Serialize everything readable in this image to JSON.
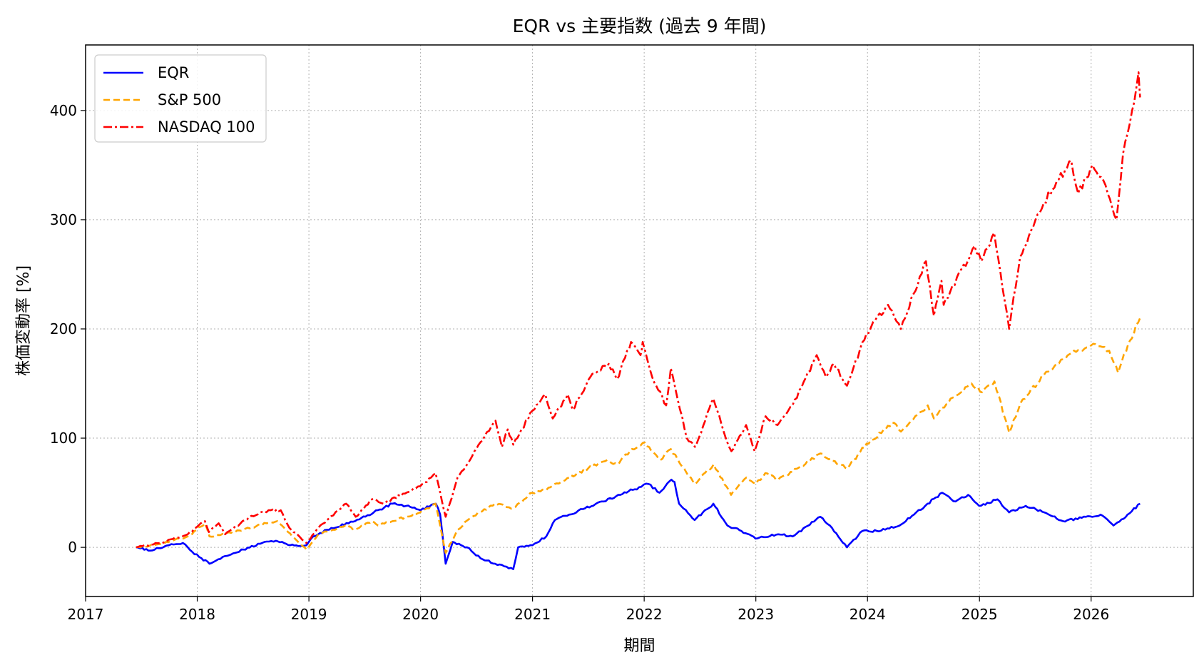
{
  "chart_data": {
    "type": "line",
    "title": "EQR vs 主要指数 (過去 9 年間)",
    "xlabel": "期間",
    "ylabel": "株価変動率 [%]",
    "xlim": [
      "2017-01-01",
      "2026-12-01"
    ],
    "ylim": [
      -45,
      460
    ],
    "x_ticks": [
      "2017",
      "2018",
      "2019",
      "2020",
      "2021",
      "2022",
      "2023",
      "2024",
      "2025",
      "2026"
    ],
    "y_ticks": [
      0,
      100,
      200,
      300,
      400
    ],
    "grid": true,
    "legend_position": "top-left",
    "series": [
      {
        "name": "EQR",
        "color": "#0000ff",
        "style": "solid",
        "points": [
          [
            "2017-06-15",
            0
          ],
          [
            "2017-08-01",
            -3
          ],
          [
            "2017-10-01",
            2
          ],
          [
            "2017-11-15",
            4
          ],
          [
            "2017-12-15",
            -4
          ],
          [
            "2018-01-15",
            -10
          ],
          [
            "2018-02-10",
            -15
          ],
          [
            "2018-04-01",
            -8
          ],
          [
            "2018-06-01",
            -2
          ],
          [
            "2018-08-01",
            4
          ],
          [
            "2018-09-15",
            6
          ],
          [
            "2018-11-01",
            2
          ],
          [
            "2018-12-24",
            2
          ],
          [
            "2019-01-15",
            10
          ],
          [
            "2019-03-01",
            16
          ],
          [
            "2019-06-01",
            24
          ],
          [
            "2019-08-01",
            32
          ],
          [
            "2019-10-01",
            40
          ],
          [
            "2019-11-15",
            38
          ],
          [
            "2020-01-01",
            34
          ],
          [
            "2020-02-20",
            40
          ],
          [
            "2020-03-05",
            30
          ],
          [
            "2020-03-23",
            -15
          ],
          [
            "2020-04-15",
            5
          ],
          [
            "2020-06-01",
            0
          ],
          [
            "2020-07-15",
            -10
          ],
          [
            "2020-09-01",
            -15
          ],
          [
            "2020-10-30",
            -20
          ],
          [
            "2020-11-15",
            0
          ],
          [
            "2021-01-01",
            2
          ],
          [
            "2021-02-15",
            10
          ],
          [
            "2021-03-15",
            25
          ],
          [
            "2021-05-01",
            30
          ],
          [
            "2021-06-15",
            35
          ],
          [
            "2021-08-15",
            42
          ],
          [
            "2021-10-15",
            48
          ],
          [
            "2021-12-15",
            55
          ],
          [
            "2022-01-15",
            58
          ],
          [
            "2022-02-20",
            50
          ],
          [
            "2022-03-31",
            62
          ],
          [
            "2022-04-10",
            60
          ],
          [
            "2022-04-25",
            40
          ],
          [
            "2022-06-15",
            25
          ],
          [
            "2022-08-15",
            40
          ],
          [
            "2022-09-30",
            20
          ],
          [
            "2022-11-15",
            15
          ],
          [
            "2022-12-31",
            8
          ],
          [
            "2023-03-15",
            12
          ],
          [
            "2023-05-01",
            10
          ],
          [
            "2023-07-31",
            28
          ],
          [
            "2023-08-31",
            20
          ],
          [
            "2023-10-26",
            0
          ],
          [
            "2023-12-15",
            15
          ],
          [
            "2024-02-01",
            15
          ],
          [
            "2024-04-15",
            20
          ],
          [
            "2024-06-01",
            30
          ],
          [
            "2024-07-15",
            40
          ],
          [
            "2024-09-01",
            50
          ],
          [
            "2024-10-15",
            42
          ],
          [
            "2024-11-25",
            48
          ],
          [
            "2024-12-31",
            38
          ],
          [
            "2025-03-01",
            44
          ],
          [
            "2025-04-08",
            32
          ],
          [
            "2025-06-01",
            38
          ],
          [
            "2025-08-01",
            32
          ],
          [
            "2025-10-01",
            24
          ],
          [
            "2025-12-15",
            28
          ],
          [
            "2026-02-01",
            30
          ],
          [
            "2026-03-15",
            20
          ],
          [
            "2026-04-30",
            30
          ],
          [
            "2026-06-10",
            40
          ]
        ]
      },
      {
        "name": "S&P 500",
        "color": "#ffa500",
        "style": "dashed",
        "points": [
          [
            "2017-06-15",
            0
          ],
          [
            "2017-09-01",
            3
          ],
          [
            "2017-12-01",
            10
          ],
          [
            "2018-01-26",
            22
          ],
          [
            "2018-02-10",
            10
          ],
          [
            "2018-04-01",
            12
          ],
          [
            "2018-06-01",
            16
          ],
          [
            "2018-08-15",
            22
          ],
          [
            "2018-09-20",
            24
          ],
          [
            "2018-10-25",
            14
          ],
          [
            "2018-12-24",
            -2
          ],
          [
            "2019-02-01",
            12
          ],
          [
            "2019-04-30",
            20
          ],
          [
            "2019-06-01",
            16
          ],
          [
            "2019-07-26",
            24
          ],
          [
            "2019-08-15",
            20
          ],
          [
            "2019-10-01",
            24
          ],
          [
            "2019-12-31",
            32
          ],
          [
            "2020-02-19",
            40
          ],
          [
            "2020-03-23",
            -5
          ],
          [
            "2020-05-01",
            16
          ],
          [
            "2020-06-08",
            26
          ],
          [
            "2020-08-31",
            40
          ],
          [
            "2020-10-30",
            36
          ],
          [
            "2020-12-31",
            50
          ],
          [
            "2021-03-01",
            55
          ],
          [
            "2021-05-01",
            64
          ],
          [
            "2021-07-01",
            72
          ],
          [
            "2021-09-02",
            80
          ],
          [
            "2021-10-05",
            76
          ],
          [
            "2021-11-15",
            88
          ],
          [
            "2022-01-03",
            96
          ],
          [
            "2022-02-23",
            80
          ],
          [
            "2022-03-29",
            90
          ],
          [
            "2022-05-20",
            68
          ],
          [
            "2022-06-16",
            58
          ],
          [
            "2022-08-16",
            76
          ],
          [
            "2022-10-12",
            48
          ],
          [
            "2022-12-01",
            64
          ],
          [
            "2023-01-01",
            58
          ],
          [
            "2023-02-01",
            68
          ],
          [
            "2023-03-15",
            62
          ],
          [
            "2023-05-15",
            72
          ],
          [
            "2023-07-31",
            86
          ],
          [
            "2023-10-27",
            72
          ],
          [
            "2023-12-29",
            95
          ],
          [
            "2024-03-28",
            114
          ],
          [
            "2024-04-19",
            106
          ],
          [
            "2024-07-16",
            130
          ],
          [
            "2024-08-05",
            118
          ],
          [
            "2024-09-01",
            128
          ],
          [
            "2024-12-06",
            150
          ],
          [
            "2025-01-10",
            142
          ],
          [
            "2025-02-19",
            152
          ],
          [
            "2025-04-08",
            105
          ],
          [
            "2025-05-15",
            132
          ],
          [
            "2025-07-31",
            158
          ],
          [
            "2025-10-30",
            178
          ],
          [
            "2026-01-15",
            186
          ],
          [
            "2026-03-01",
            180
          ],
          [
            "2026-03-30",
            160
          ],
          [
            "2026-05-01",
            185
          ],
          [
            "2026-06-10",
            210
          ]
        ]
      },
      {
        "name": "NASDAQ 100",
        "color": "#ff0000",
        "style": "dashdot",
        "points": [
          [
            "2017-06-15",
            0
          ],
          [
            "2017-09-01",
            4
          ],
          [
            "2017-12-01",
            12
          ],
          [
            "2018-01-26",
            24
          ],
          [
            "2018-02-08",
            14
          ],
          [
            "2018-03-12",
            22
          ],
          [
            "2018-04-02",
            12
          ],
          [
            "2018-06-20",
            28
          ],
          [
            "2018-08-29",
            34
          ],
          [
            "2018-10-01",
            34
          ],
          [
            "2018-10-29",
            18
          ],
          [
            "2018-12-24",
            4
          ],
          [
            "2019-02-01",
            18
          ],
          [
            "2019-05-03",
            40
          ],
          [
            "2019-06-03",
            28
          ],
          [
            "2019-07-26",
            44
          ],
          [
            "2019-09-01",
            40
          ],
          [
            "2019-12-31",
            56
          ],
          [
            "2020-02-19",
            68
          ],
          [
            "2020-03-23",
            28
          ],
          [
            "2020-05-01",
            64
          ],
          [
            "2020-07-01",
            90
          ],
          [
            "2020-09-02",
            116
          ],
          [
            "2020-09-23",
            92
          ],
          [
            "2020-10-12",
            108
          ],
          [
            "2020-10-30",
            94
          ],
          [
            "2020-12-31",
            125
          ],
          [
            "2021-02-12",
            140
          ],
          [
            "2021-03-08",
            118
          ],
          [
            "2021-04-26",
            140
          ],
          [
            "2021-05-12",
            126
          ],
          [
            "2021-07-09",
            156
          ],
          [
            "2021-09-07",
            168
          ],
          [
            "2021-10-04",
            154
          ],
          [
            "2021-11-19",
            188
          ],
          [
            "2021-12-20",
            176
          ],
          [
            "2021-12-27",
            188
          ],
          [
            "2022-01-27",
            156
          ],
          [
            "2022-03-14",
            130
          ],
          [
            "2022-03-29",
            164
          ],
          [
            "2022-05-20",
            100
          ],
          [
            "2022-06-16",
            92
          ],
          [
            "2022-08-15",
            136
          ],
          [
            "2022-09-30",
            96
          ],
          [
            "2022-10-13",
            88
          ],
          [
            "2022-11-30",
            112
          ],
          [
            "2022-12-28",
            88
          ],
          [
            "2023-02-02",
            120
          ],
          [
            "2023-03-13",
            112
          ],
          [
            "2023-05-01",
            130
          ],
          [
            "2023-07-19",
            176
          ],
          [
            "2023-08-18",
            156
          ],
          [
            "2023-09-14",
            168
          ],
          [
            "2023-10-26",
            148
          ],
          [
            "2023-12-29",
            196
          ],
          [
            "2024-03-08",
            222
          ],
          [
            "2024-04-19",
            200
          ],
          [
            "2024-07-10",
            262
          ],
          [
            "2024-08-05",
            212
          ],
          [
            "2024-08-30",
            244
          ],
          [
            "2024-09-06",
            222
          ],
          [
            "2024-12-16",
            276
          ],
          [
            "2025-01-07",
            262
          ],
          [
            "2025-02-18",
            288
          ],
          [
            "2025-04-08",
            200
          ],
          [
            "2025-05-14",
            266
          ],
          [
            "2025-07-31",
            316
          ],
          [
            "2025-10-28",
            354
          ],
          [
            "2025-11-20",
            324
          ],
          [
            "2026-01-05",
            350
          ],
          [
            "2026-02-10",
            336
          ],
          [
            "2026-03-25",
            300
          ],
          [
            "2026-04-15",
            360
          ],
          [
            "2026-05-15",
            400
          ],
          [
            "2026-06-05",
            435
          ],
          [
            "2026-06-10",
            412
          ]
        ]
      }
    ]
  }
}
